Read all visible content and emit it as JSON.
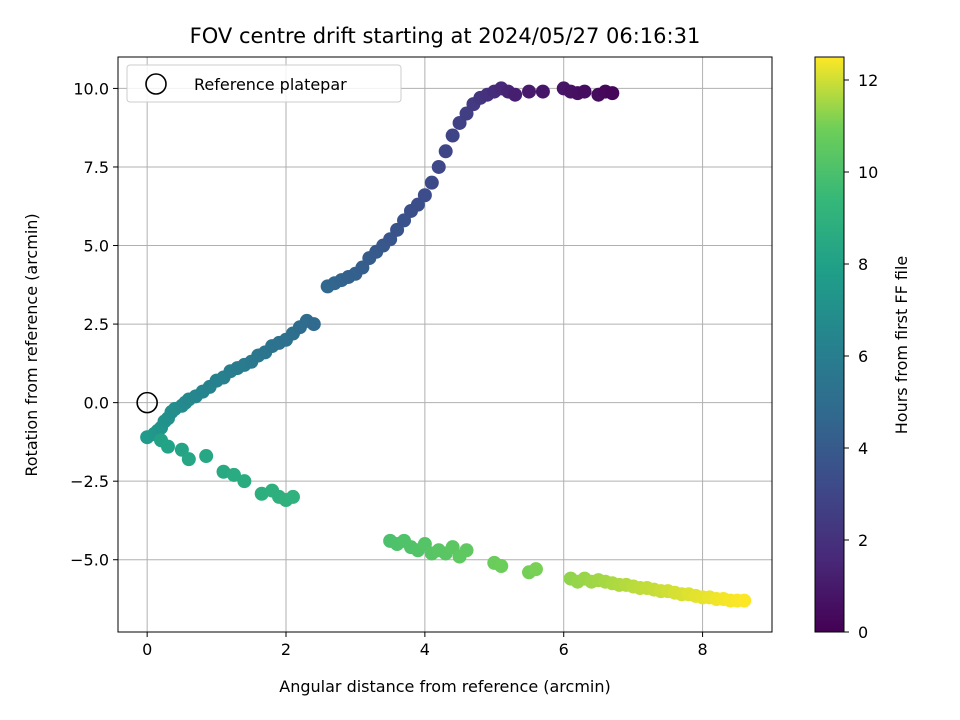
{
  "chart_data": {
    "type": "scatter",
    "title": "FOV centre drift starting at 2024/05/27 06:16:31",
    "xlabel": "Angular distance from reference (arcmin)",
    "ylabel": "Rotation from reference (arcmin)",
    "xlim": [
      -0.42,
      9.0
    ],
    "ylim": [
      -7.3,
      11.0
    ],
    "xticks": [
      0,
      2,
      4,
      6,
      8
    ],
    "xtick_labels": [
      "0",
      "2",
      "4",
      "6",
      "8"
    ],
    "yticks": [
      -5.0,
      -2.5,
      0.0,
      2.5,
      5.0,
      7.5,
      10.0
    ],
    "ytick_labels": [
      "−5.0",
      "−2.5",
      "0.0",
      "2.5",
      "5.0",
      "7.5",
      "10.0"
    ],
    "grid": true,
    "legend": {
      "placement": "top-left",
      "entries": [
        "Reference platepar"
      ]
    },
    "colormap": "viridis",
    "colorbar": {
      "label": "Hours from first FF file",
      "range": [
        0,
        12.5
      ],
      "ticks": [
        0,
        2,
        4,
        6,
        8,
        10,
        12
      ],
      "tick_labels": [
        "0",
        "2",
        "4",
        "6",
        "8",
        "10",
        "12"
      ]
    },
    "reference_point": {
      "x": 0,
      "y": 0
    },
    "series": [
      {
        "x": [
          0.0,
          0.1,
          0.15,
          0.2,
          0.25,
          0.3,
          0.35,
          0.4,
          0.5,
          0.55,
          0.6,
          0.7,
          0.8,
          0.9,
          1.0,
          1.1,
          1.2,
          1.3,
          1.4,
          1.5,
          1.6,
          1.7,
          1.8,
          1.9,
          2.0,
          2.1,
          2.2,
          2.3,
          2.4,
          2.6,
          2.7,
          2.8,
          2.9,
          3.0,
          3.1,
          3.2,
          3.3,
          3.4,
          3.5,
          3.6,
          3.7,
          3.8,
          3.9,
          4.0,
          4.1,
          4.2,
          4.3,
          4.4,
          4.5,
          4.6,
          4.7,
          4.8,
          4.9,
          5.0,
          5.1,
          5.2,
          5.3,
          5.5,
          5.7,
          6.0,
          6.1,
          6.2,
          6.3,
          6.5,
          6.6,
          6.7
        ],
        "y": [
          -1.1,
          -1.0,
          -0.9,
          -0.8,
          -0.6,
          -0.5,
          -0.3,
          -0.2,
          -0.1,
          0.0,
          0.1,
          0.2,
          0.35,
          0.5,
          0.7,
          0.8,
          1.0,
          1.1,
          1.2,
          1.3,
          1.5,
          1.6,
          1.8,
          1.9,
          2.0,
          2.2,
          2.4,
          2.6,
          2.5,
          3.7,
          3.8,
          3.9,
          4.0,
          4.1,
          4.3,
          4.6,
          4.8,
          5.0,
          5.2,
          5.5,
          5.8,
          6.1,
          6.3,
          6.6,
          7.0,
          7.5,
          8.0,
          8.5,
          8.9,
          9.2,
          9.5,
          9.7,
          9.8,
          9.9,
          10.0,
          9.9,
          9.8,
          9.9,
          9.9,
          10.0,
          9.9,
          9.85,
          9.9,
          9.8,
          9.9,
          9.85
        ],
        "hours": [
          7.6,
          7.5,
          7.4,
          7.3,
          7.2,
          7.1,
          7.0,
          6.9,
          6.8,
          6.7,
          6.6,
          6.5,
          6.4,
          6.3,
          6.2,
          6.1,
          6.0,
          5.9,
          5.8,
          5.7,
          5.6,
          5.5,
          5.4,
          5.3,
          5.2,
          5.1,
          5.0,
          4.9,
          4.8,
          4.7,
          4.6,
          4.5,
          4.4,
          4.3,
          4.2,
          4.1,
          4.0,
          3.9,
          3.8,
          3.7,
          3.6,
          3.5,
          3.4,
          3.3,
          3.2,
          3.1,
          3.0,
          2.9,
          2.8,
          2.6,
          2.4,
          2.2,
          2.0,
          1.8,
          1.6,
          1.4,
          1.2,
          1.0,
          0.9,
          0.8,
          0.7,
          0.6,
          0.5,
          0.4,
          0.3,
          0.2
        ]
      },
      {
        "x": [
          0.2,
          0.3,
          0.5,
          0.6,
          0.85,
          1.1,
          1.25,
          1.4,
          1.65,
          1.8,
          1.9,
          2.0,
          2.1,
          3.5,
          3.6,
          3.7,
          3.8,
          3.9,
          4.0,
          4.1,
          4.2,
          4.3,
          4.4,
          4.5,
          4.6,
          5.0,
          5.1,
          5.5,
          5.6,
          6.1,
          6.2,
          6.3,
          6.4,
          6.5,
          6.6,
          6.7,
          6.8,
          6.9,
          7.0,
          7.1,
          7.2,
          7.3,
          7.4,
          7.5,
          7.6,
          7.7,
          7.8,
          7.9,
          8.0,
          8.1,
          8.2,
          8.3,
          8.4,
          8.5,
          8.6
        ],
        "y": [
          -1.2,
          -1.4,
          -1.5,
          -1.8,
          -1.7,
          -2.2,
          -2.3,
          -2.5,
          -2.9,
          -2.8,
          -3.0,
          -3.1,
          -3.0,
          -4.4,
          -4.5,
          -4.4,
          -4.6,
          -4.7,
          -4.5,
          -4.8,
          -4.7,
          -4.8,
          -4.6,
          -4.9,
          -4.7,
          -5.1,
          -5.2,
          -5.4,
          -5.3,
          -5.6,
          -5.7,
          -5.6,
          -5.7,
          -5.65,
          -5.7,
          -5.75,
          -5.8,
          -5.8,
          -5.85,
          -5.9,
          -5.9,
          -5.95,
          -6.0,
          -6.0,
          -6.05,
          -6.1,
          -6.1,
          -6.15,
          -6.2,
          -6.2,
          -6.25,
          -6.25,
          -6.3,
          -6.3,
          -6.3
        ],
        "hours": [
          8.0,
          8.1,
          8.2,
          8.3,
          8.4,
          8.5,
          8.6,
          8.7,
          8.8,
          8.85,
          8.9,
          8.95,
          9.0,
          10.0,
          10.05,
          10.1,
          10.15,
          10.2,
          10.25,
          10.3,
          10.35,
          10.4,
          10.45,
          10.5,
          10.55,
          10.8,
          10.85,
          11.0,
          11.05,
          11.3,
          11.35,
          11.4,
          11.45,
          11.5,
          11.55,
          11.6,
          11.65,
          11.7,
          11.75,
          11.8,
          11.85,
          11.9,
          11.95,
          12.0,
          12.05,
          12.1,
          12.15,
          12.2,
          12.25,
          12.3,
          12.35,
          12.4,
          12.42,
          12.45,
          12.48
        ]
      }
    ]
  }
}
